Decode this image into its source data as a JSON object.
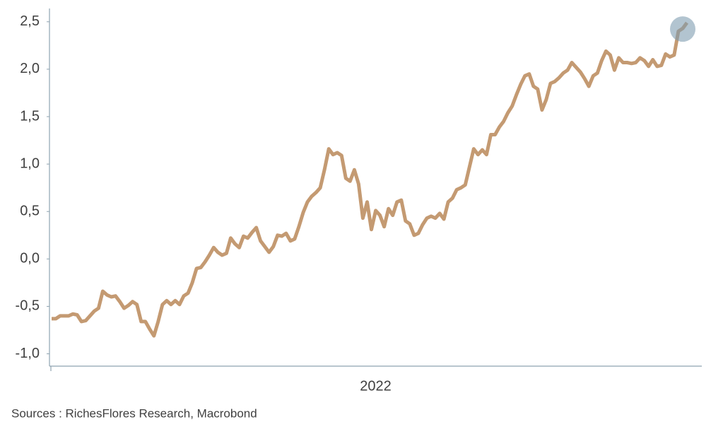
{
  "chart_data": {
    "type": "line",
    "categories": [
      null,
      null,
      null,
      null,
      null,
      null,
      null,
      null,
      null,
      null,
      null,
      null,
      null,
      null,
      null,
      null,
      null,
      null,
      null,
      null,
      null,
      null,
      null,
      null,
      null,
      null,
      null,
      null,
      null,
      null,
      null,
      null,
      null,
      null,
      null,
      null,
      null,
      null,
      null,
      null,
      null,
      null,
      null,
      null,
      null,
      null,
      null,
      null,
      null,
      null,
      null,
      null,
      null,
      null,
      null,
      null,
      null,
      null,
      null,
      null,
      null,
      null,
      null,
      null,
      null,
      null,
      null,
      null,
      null,
      null,
      null,
      null,
      null,
      null,
      null,
      null,
      "2022",
      null,
      null,
      null,
      null,
      null,
      null,
      null,
      null,
      null,
      null,
      null,
      null,
      null,
      null,
      null,
      null,
      null,
      null,
      null,
      null,
      null,
      null,
      null,
      null,
      null,
      null,
      null,
      null,
      null,
      null,
      null,
      null,
      null,
      null,
      null,
      null,
      null,
      null,
      null,
      null,
      null,
      null,
      null,
      null,
      null,
      null,
      null,
      null,
      null,
      null,
      null,
      null,
      null,
      null,
      null,
      null,
      null,
      null,
      null,
      null,
      null,
      null,
      null,
      null,
      null,
      null,
      null,
      null,
      null,
      null,
      null,
      null,
      null
    ],
    "series": [
      {
        "color": "#c49a72",
        "values": [
          -0.63,
          -0.63,
          -0.6,
          -0.6,
          -0.6,
          -0.58,
          -0.59,
          -0.66,
          -0.65,
          -0.6,
          -0.55,
          -0.52,
          -0.34,
          -0.38,
          -0.4,
          -0.39,
          -0.45,
          -0.52,
          -0.49,
          -0.45,
          -0.48,
          -0.66,
          -0.66,
          -0.74,
          -0.81,
          -0.66,
          -0.48,
          -0.44,
          -0.48,
          -0.44,
          -0.48,
          -0.39,
          -0.36,
          -0.25,
          -0.1,
          -0.09,
          -0.03,
          0.04,
          0.12,
          0.07,
          0.04,
          0.06,
          0.22,
          0.16,
          0.12,
          0.24,
          0.22,
          0.28,
          0.33,
          0.19,
          0.13,
          0.07,
          0.13,
          0.25,
          0.24,
          0.27,
          0.19,
          0.21,
          0.34,
          0.49,
          0.6,
          0.66,
          0.7,
          0.75,
          0.94,
          1.16,
          1.1,
          1.12,
          1.09,
          0.85,
          0.82,
          0.94,
          0.79,
          0.43,
          0.6,
          0.31,
          0.51,
          0.46,
          0.34,
          0.53,
          0.46,
          0.6,
          0.62,
          0.4,
          0.37,
          0.25,
          0.27,
          0.36,
          0.43,
          0.45,
          0.43,
          0.48,
          0.42,
          0.6,
          0.64,
          0.73,
          0.75,
          0.78,
          0.97,
          1.16,
          1.1,
          1.15,
          1.1,
          1.31,
          1.31,
          1.39,
          1.45,
          1.54,
          1.61,
          1.73,
          1.84,
          1.93,
          1.95,
          1.82,
          1.79,
          1.57,
          1.68,
          1.85,
          1.87,
          1.91,
          1.96,
          1.99,
          2.07,
          2.02,
          1.97,
          1.9,
          1.82,
          1.93,
          1.96,
          2.09,
          2.19,
          2.15,
          1.99,
          2.12,
          2.07,
          2.07,
          2.06,
          2.07,
          2.12,
          2.09,
          2.03,
          2.1,
          2.03,
          2.04,
          2.16,
          2.13,
          2.15,
          2.4,
          2.43,
          2.49
        ]
      }
    ],
    "ylim": [
      -1.13,
      2.64
    ],
    "yticks": [
      {
        "value": -1.0,
        "label": "-1,0"
      },
      {
        "value": -0.5,
        "label": "-0,5"
      },
      {
        "value": 0,
        "label": "0,0"
      },
      {
        "value": 0.5,
        "label": "0,5"
      },
      {
        "value": 1.0,
        "label": "1,0"
      },
      {
        "value": 1.5,
        "label": "1,5"
      },
      {
        "value": 2.0,
        "label": "2,0"
      },
      {
        "value": 2.5,
        "label": "2,5"
      }
    ],
    "highlight_last": true,
    "source": "Sources : RichesFlores Research, Macrobond"
  }
}
